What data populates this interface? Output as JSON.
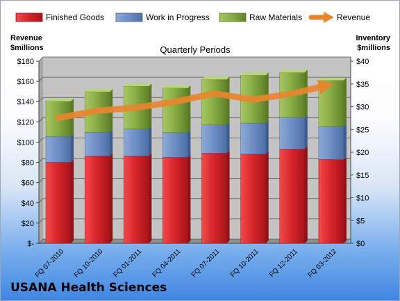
{
  "footer_title": "USANA Health Sciences",
  "chart_data": {
    "type": "bar",
    "stacked": true,
    "title": "Quarterly Periods",
    "categories": [
      "FQ 07-2010",
      "FQ 10-2010",
      "FQ 01-2011",
      "FQ 04-2011",
      "FQ 07-2011",
      "FQ 10-2011",
      "FQ 12-2011",
      "FQ 03-2012"
    ],
    "series": [
      {
        "name": "Finished Goods",
        "axis": "right",
        "color": "#cc1f26",
        "values": [
          17.8,
          19.2,
          19.2,
          18.9,
          19.8,
          19.6,
          20.7,
          18.4
        ]
      },
      {
        "name": "Work in Progress",
        "axis": "right",
        "color": "#5e82be",
        "values": [
          5.7,
          5.2,
          5.9,
          5.4,
          6.2,
          6.8,
          7.0,
          7.3
        ]
      },
      {
        "name": "Raw Materials",
        "axis": "right",
        "color": "#7ea13a",
        "values": [
          7.7,
          8.9,
          9.4,
          9.8,
          10.0,
          10.5,
          9.8,
          10.1
        ]
      },
      {
        "name": "Revenue",
        "axis": "left",
        "type": "line",
        "color": "#e8852e",
        "values": [
          124,
          131,
          134,
          140,
          148,
          142,
          148,
          157
        ]
      }
    ],
    "left_axis": {
      "label_line1": "Revenue",
      "label_line2": "$millions",
      "ylim": [
        0,
        180
      ],
      "ticks": [
        "$-",
        "$20",
        "$40",
        "$60",
        "$80",
        "$100",
        "$120",
        "$140",
        "$160",
        "$180"
      ]
    },
    "right_axis": {
      "label_line1": "Inventory",
      "label_line2": "$millions",
      "ylim": [
        0,
        40
      ],
      "ticks": [
        "$0",
        "$5",
        "$10",
        "$15",
        "$20",
        "$25",
        "$30",
        "$35",
        "$40"
      ]
    },
    "grid": true,
    "legend": "top"
  }
}
